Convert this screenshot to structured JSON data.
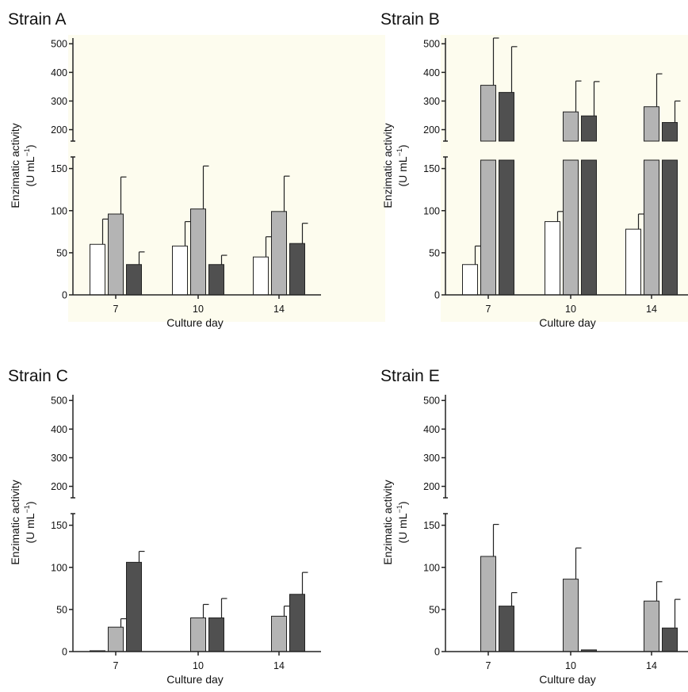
{
  "colors": {
    "background": "#fdfcee",
    "white_bar": "#ffffff",
    "light_bar": "#b4b4b4",
    "dark_bar": "#505050",
    "axis": "#222222"
  },
  "chart_data": [
    {
      "type": "bar",
      "title": "Strain A",
      "xlabel": "Culture day",
      "ylabel": "Enzimatic activity",
      "ylabel_unit_line1": "(U mL",
      "ylabel_unit_sup": "−1",
      "ylabel_unit_line2": ")",
      "categories": [
        "7",
        "10",
        "14"
      ],
      "axis_break": true,
      "ylim_lower": [
        0,
        160
      ],
      "ylim_upper": [
        160,
        520
      ],
      "yticks_lower": [
        0,
        50,
        100,
        150
      ],
      "yticks_upper": [
        200,
        300,
        400,
        500
      ],
      "series": [
        {
          "values": [
            60,
            58,
            45
          ],
          "errors": [
            30,
            29,
            24
          ],
          "color": "white"
        },
        {
          "values": [
            96,
            102,
            99
          ],
          "errors": [
            44,
            51,
            42
          ],
          "color": "light"
        },
        {
          "values": [
            36,
            36,
            61
          ],
          "errors": [
            15,
            11,
            24
          ],
          "color": "dark"
        }
      ]
    },
    {
      "type": "bar",
      "title": "Strain B",
      "xlabel": "Culture day",
      "ylabel": "Enzimatic activity",
      "ylabel_unit_line1": "(U mL",
      "ylabel_unit_sup": "−1",
      "ylabel_unit_line2": ")",
      "categories": [
        "7",
        "10",
        "14"
      ],
      "axis_break": true,
      "ylim_lower": [
        0,
        160
      ],
      "ylim_upper": [
        160,
        520
      ],
      "yticks_lower": [
        0,
        50,
        100,
        150
      ],
      "yticks_upper": [
        200,
        300,
        400,
        500
      ],
      "series": [
        {
          "values": [
            36,
            87,
            78
          ],
          "errors": [
            22,
            12,
            18
          ],
          "color": "white"
        },
        {
          "values": [
            355,
            262,
            280
          ],
          "errors": [
            165,
            108,
            115
          ],
          "color": "light"
        },
        {
          "values": [
            330,
            248,
            225
          ],
          "errors": [
            160,
            120,
            75
          ],
          "color": "dark"
        }
      ]
    },
    {
      "type": "bar",
      "title": "Strain C",
      "xlabel": "Culture day",
      "ylabel": "Enzimatic activity",
      "ylabel_unit_line1": "(U mL",
      "ylabel_unit_sup": "−1",
      "ylabel_unit_line2": ")",
      "categories": [
        "7",
        "10",
        "14"
      ],
      "axis_break": true,
      "ylim_lower": [
        0,
        160
      ],
      "ylim_upper": [
        160,
        520
      ],
      "yticks_lower": [
        0,
        50,
        100,
        150
      ],
      "yticks_upper": [
        200,
        300,
        400,
        500
      ],
      "series": [
        {
          "values": [
            1,
            0,
            0
          ],
          "errors": [
            0,
            0,
            0
          ],
          "color": "white"
        },
        {
          "values": [
            29,
            40,
            42
          ],
          "errors": [
            10,
            16,
            12
          ],
          "color": "light"
        },
        {
          "values": [
            106,
            40,
            68
          ],
          "errors": [
            13,
            23,
            26
          ],
          "color": "dark"
        }
      ]
    },
    {
      "type": "bar",
      "title": "Strain E",
      "xlabel": "Culture day",
      "ylabel": "Enzimatic activity",
      "ylabel_unit_line1": "(U mL",
      "ylabel_unit_sup": "−1",
      "ylabel_unit_line2": ")",
      "categories": [
        "7",
        "10",
        "14"
      ],
      "axis_break": true,
      "ylim_lower": [
        0,
        160
      ],
      "ylim_upper": [
        160,
        520
      ],
      "yticks_lower": [
        0,
        50,
        100,
        150
      ],
      "yticks_upper": [
        200,
        300,
        400,
        500
      ],
      "series": [
        {
          "values": [
            0,
            0,
            0
          ],
          "errors": [
            0,
            0,
            0
          ],
          "color": "white"
        },
        {
          "values": [
            113,
            86,
            60
          ],
          "errors": [
            38,
            37,
            23
          ],
          "color": "light"
        },
        {
          "values": [
            54,
            2,
            28
          ],
          "errors": [
            16,
            0,
            34
          ],
          "color": "dark"
        }
      ]
    }
  ]
}
